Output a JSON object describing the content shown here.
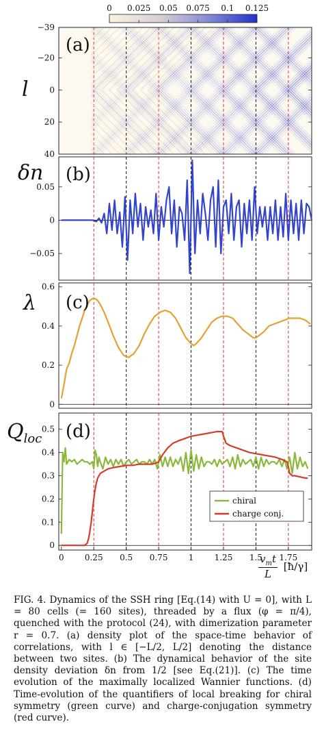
{
  "chart_data": [
    {
      "panel": "(a)",
      "type": "heatmap",
      "ylabel": "l",
      "yticks": [
        "−39",
        "−20",
        "0",
        "20",
        "40"
      ],
      "ylim": [
        -39,
        40
      ],
      "colorbar": {
        "ticks": [
          "0",
          "0.025",
          "0.05",
          "0.075",
          "0.1",
          "0.125"
        ],
        "range": [
          0,
          0.125
        ],
        "colors": [
          "#fbf3df",
          "#2233cc"
        ]
      },
      "light_cone_period": 0.5
    },
    {
      "panel": "(b)",
      "type": "line",
      "ylabel": "δn",
      "yticks": [
        "0.05",
        "0",
        "−0.05"
      ],
      "ylim": [
        -0.09,
        0.095
      ],
      "series": [
        {
          "color": "#3344cc",
          "x": [
            0.0,
            0.24,
            0.27,
            0.29,
            0.31,
            0.33,
            0.35,
            0.37,
            0.39,
            0.41,
            0.43,
            0.45,
            0.47,
            0.49,
            0.51,
            0.53,
            0.55,
            0.57,
            0.59,
            0.61,
            0.63,
            0.65,
            0.67,
            0.69,
            0.71,
            0.73,
            0.75,
            0.77,
            0.79,
            0.81,
            0.83,
            0.85,
            0.87,
            0.89,
            0.91,
            0.93,
            0.95,
            0.97,
            0.99,
            1.01,
            1.03,
            1.05,
            1.07,
            1.09,
            1.11,
            1.13,
            1.15,
            1.17,
            1.19,
            1.21,
            1.23,
            1.25,
            1.27,
            1.29,
            1.31,
            1.33,
            1.35,
            1.37,
            1.39,
            1.41,
            1.43,
            1.45,
            1.47,
            1.49,
            1.51,
            1.53,
            1.55,
            1.57,
            1.59,
            1.61,
            1.63,
            1.65,
            1.67,
            1.69,
            1.71,
            1.73,
            1.75,
            1.77,
            1.79,
            1.81,
            1.83,
            1.85,
            1.87,
            1.89,
            1.91,
            1.93
          ],
          "y": [
            0,
            0,
            -0.002,
            0.003,
            -0.004,
            0.01,
            -0.02,
            0.025,
            -0.015,
            0.03,
            -0.02,
            0.012,
            -0.04,
            0.035,
            -0.06,
            0.03,
            -0.02,
            0.04,
            -0.01,
            0.025,
            -0.03,
            0.02,
            -0.01,
            0.015,
            -0.02,
            0.04,
            -0.03,
            0.02,
            -0.01,
            0.03,
            0.05,
            -0.02,
            0.03,
            -0.04,
            0.02,
            0.01,
            -0.03,
            0.06,
            -0.08,
            0.09,
            -0.05,
            0.03,
            -0.02,
            0.04,
            0.01,
            -0.03,
            0.03,
            0.05,
            -0.04,
            0.06,
            -0.05,
            0.02,
            0.03,
            -0.02,
            0.04,
            -0.03,
            0.02,
            0.03,
            -0.04,
            0.025,
            -0.02,
            0.03,
            -0.03,
            0.05,
            -0.02,
            0.02,
            -0.01,
            0.02,
            -0.03,
            0.02,
            -0.02,
            0.03,
            -0.03,
            0.02,
            -0.025,
            0.04,
            -0.03,
            0.03,
            -0.02,
            0.025,
            -0.03,
            0.03,
            -0.02,
            0.025,
            0.02,
            0
          ]
        }
      ]
    },
    {
      "panel": "(c)",
      "type": "line",
      "ylabel": "λ",
      "yticks": [
        "0.6",
        "0.4",
        "0.2",
        "0"
      ],
      "ylim": [
        -0.02,
        0.62
      ],
      "series": [
        {
          "color": "#e8a030",
          "x": [
            0.0,
            0.02,
            0.04,
            0.06,
            0.08,
            0.1,
            0.12,
            0.14,
            0.16,
            0.18,
            0.2,
            0.22,
            0.24,
            0.26,
            0.28,
            0.3,
            0.33,
            0.36,
            0.4,
            0.44,
            0.48,
            0.52,
            0.54,
            0.56,
            0.6,
            0.64,
            0.68,
            0.72,
            0.76,
            0.8,
            0.84,
            0.88,
            0.92,
            0.96,
            1.0,
            1.02,
            1.04,
            1.08,
            1.12,
            1.16,
            1.2,
            1.24,
            1.28,
            1.32,
            1.36,
            1.4,
            1.44,
            1.48,
            1.5,
            1.52,
            1.56,
            1.6,
            1.64,
            1.68,
            1.72,
            1.76,
            1.8,
            1.84,
            1.88,
            1.92
          ],
          "y": [
            0.03,
            0.1,
            0.18,
            0.21,
            0.26,
            0.3,
            0.35,
            0.4,
            0.44,
            0.48,
            0.51,
            0.53,
            0.54,
            0.54,
            0.53,
            0.51,
            0.47,
            0.42,
            0.35,
            0.29,
            0.25,
            0.24,
            0.25,
            0.26,
            0.3,
            0.36,
            0.41,
            0.45,
            0.47,
            0.48,
            0.47,
            0.44,
            0.39,
            0.34,
            0.31,
            0.3,
            0.31,
            0.34,
            0.38,
            0.42,
            0.44,
            0.45,
            0.45,
            0.44,
            0.41,
            0.38,
            0.36,
            0.34,
            0.34,
            0.35,
            0.37,
            0.4,
            0.41,
            0.42,
            0.43,
            0.44,
            0.44,
            0.44,
            0.43,
            0.41
          ]
        }
      ]
    },
    {
      "panel": "(d)",
      "type": "line",
      "ylabel": "Q_loc",
      "yticks": [
        "0.5",
        "0.4",
        "0.3",
        "0.2",
        "0.1",
        "0"
      ],
      "ylim": [
        -0.02,
        0.57
      ],
      "xticks": [
        "0",
        "0.25",
        "0.5",
        "0.75",
        "1",
        "1.25",
        "1.5",
        "1.75"
      ],
      "xlim": [
        -0.02,
        1.93
      ],
      "xlabel": "v_m t / L [ħ/γ]",
      "legend": {
        "position": "bottom-right",
        "entries": [
          "chiral",
          "charge conj."
        ]
      },
      "series": [
        {
          "name": "chiral",
          "color": "#8ab838",
          "x": [
            0.0,
            0.01,
            0.02,
            0.03,
            0.04,
            0.06,
            0.08,
            0.1,
            0.12,
            0.14,
            0.16,
            0.18,
            0.2,
            0.22,
            0.24,
            0.25,
            0.26,
            0.27,
            0.28,
            0.29,
            0.3,
            0.32,
            0.34,
            0.36,
            0.38,
            0.4,
            0.42,
            0.44,
            0.46,
            0.48,
            0.5,
            0.52,
            0.54,
            0.56,
            0.58,
            0.6,
            0.62,
            0.64,
            0.66,
            0.68,
            0.7,
            0.72,
            0.74,
            0.76,
            0.78,
            0.8,
            0.82,
            0.84,
            0.86,
            0.88,
            0.9,
            0.92,
            0.94,
            0.96,
            0.98,
            1.0,
            1.02,
            1.04,
            1.06,
            1.08,
            1.1,
            1.12,
            1.14,
            1.16,
            1.18,
            1.2,
            1.22,
            1.24,
            1.26,
            1.28,
            1.3,
            1.32,
            1.34,
            1.36,
            1.38,
            1.4,
            1.42,
            1.44,
            1.46,
            1.48,
            1.5,
            1.52,
            1.54,
            1.56,
            1.58,
            1.6,
            1.62,
            1.64,
            1.66,
            1.68,
            1.7,
            1.72,
            1.74,
            1.76,
            1.78,
            1.8,
            1.82,
            1.84,
            1.86,
            1.88,
            1.9
          ],
          "y": [
            0.05,
            0.4,
            0.36,
            0.42,
            0.35,
            0.37,
            0.36,
            0.37,
            0.35,
            0.36,
            0.37,
            0.36,
            0.36,
            0.35,
            0.36,
            0.33,
            0.41,
            0.39,
            0.34,
            0.38,
            0.36,
            0.33,
            0.38,
            0.35,
            0.37,
            0.34,
            0.37,
            0.35,
            0.37,
            0.34,
            0.36,
            0.37,
            0.35,
            0.36,
            0.37,
            0.35,
            0.36,
            0.36,
            0.35,
            0.37,
            0.35,
            0.37,
            0.33,
            0.39,
            0.34,
            0.38,
            0.34,
            0.38,
            0.34,
            0.37,
            0.35,
            0.38,
            0.32,
            0.4,
            0.31,
            0.41,
            0.32,
            0.39,
            0.33,
            0.38,
            0.34,
            0.36,
            0.36,
            0.35,
            0.37,
            0.34,
            0.37,
            0.35,
            0.36,
            0.37,
            0.34,
            0.38,
            0.33,
            0.39,
            0.34,
            0.37,
            0.35,
            0.36,
            0.37,
            0.34,
            0.38,
            0.33,
            0.38,
            0.34,
            0.37,
            0.35,
            0.36,
            0.36,
            0.35,
            0.37,
            0.34,
            0.37,
            0.33,
            0.38,
            0.31,
            0.4,
            0.33,
            0.38,
            0.34,
            0.36,
            0.33
          ]
        },
        {
          "name": "charge conj.",
          "color": "#d83a2a",
          "x": [
            0.0,
            0.12,
            0.18,
            0.2,
            0.21,
            0.22,
            0.23,
            0.24,
            0.25,
            0.26,
            0.27,
            0.28,
            0.3,
            0.33,
            0.36,
            0.4,
            0.45,
            0.5,
            0.55,
            0.6,
            0.65,
            0.7,
            0.73,
            0.75,
            0.78,
            0.82,
            0.86,
            0.9,
            0.95,
            1.0,
            1.05,
            1.1,
            1.15,
            1.2,
            1.24,
            1.25,
            1.27,
            1.3,
            1.35,
            1.4,
            1.45,
            1.5,
            1.55,
            1.6,
            1.65,
            1.7,
            1.74,
            1.75,
            1.76,
            1.78,
            1.8,
            1.84,
            1.88,
            1.9
          ],
          "y": [
            0.0,
            0.0,
            0.0,
            0.01,
            0.03,
            0.06,
            0.1,
            0.15,
            0.2,
            0.24,
            0.27,
            0.29,
            0.31,
            0.32,
            0.33,
            0.335,
            0.34,
            0.345,
            0.345,
            0.35,
            0.35,
            0.35,
            0.355,
            0.36,
            0.39,
            0.42,
            0.44,
            0.45,
            0.46,
            0.47,
            0.475,
            0.48,
            0.485,
            0.49,
            0.49,
            0.47,
            0.44,
            0.43,
            0.42,
            0.41,
            0.4,
            0.395,
            0.39,
            0.385,
            0.38,
            0.37,
            0.36,
            0.34,
            0.31,
            0.3,
            0.3,
            0.295,
            0.29,
            0.29
          ]
        }
      ]
    }
  ],
  "xaxis_label": {
    "numerator": "v",
    "numerator_sub": "m",
    "numerator_rest": "t",
    "denominator": "L",
    "unit": "[ħ/γ]"
  },
  "caption": "FIG. 4.    Dynamics of the SSH ring [Eq.(14) with U = 0], with L = 80 cells (= 160 sites), threaded by a flux (φ = π/4), quenched with the protocol (24), with dimerization parameter r = 0.7. (a) density plot of the space-time behavior of correlations, with l ∈ [−L/2, L/2] denoting the distance between two sites. (b) The dynamical behavior of the site density deviation δn from 1/2 [see Eq.(21)]. (c) The time evolution of the maximally localized Wannier functions. (d) Time-evolution of the quantifiers of local breaking for chiral symmetry (green curve) and charge-conjugation symmetry (red curve)."
}
